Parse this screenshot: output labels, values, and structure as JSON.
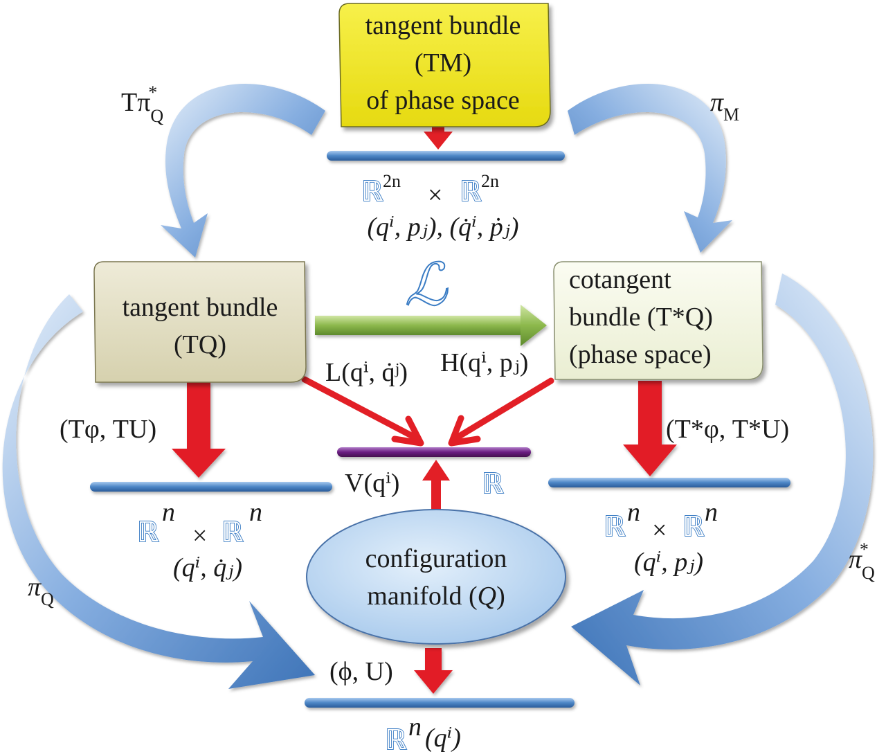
{
  "boxes": {
    "tm": {
      "line1": "tangent bundle",
      "line2": "(TM)",
      "line3": "of phase space"
    },
    "tq": {
      "line1": "tangent bundle",
      "line2": "(TQ)"
    },
    "tstarq": {
      "line1": "cotangent",
      "line2": "bundle (T*Q)",
      "line3": "(phase space)"
    },
    "q": {
      "line1": "configuration",
      "line2": "manifold (",
      "line2_var": "Q",
      "line2_end": ")"
    }
  },
  "maps": {
    "t_pi_q_star": {
      "base": "Tπ",
      "sub": "Q",
      "sup": "*"
    },
    "pi_m": {
      "base": "π",
      "sub": "M"
    },
    "pi_q": {
      "base": "π",
      "sub": "Q"
    },
    "pi_q_star": {
      "base": "π",
      "sub": "Q",
      "sup": "*"
    },
    "legendre": "ℒ",
    "t_phi_tu": "(Tφ, TU)",
    "tstar_phi": "(T*φ, T*U)",
    "phi_u": "(ϕ, U)"
  },
  "spaces": {
    "r2n": {
      "bb": "ℝ",
      "sup": "2n",
      "times": "×",
      "coords": "(qⁱ, pⱼ), (q̇ⁱ, ṗⱼ)"
    },
    "rn_tq": {
      "bb": "ℝ",
      "sup": "n",
      "times": "×",
      "coords": "(qⁱ, q̇ⱼ)"
    },
    "rn_tstar": {
      "bb": "ℝ",
      "sup": "n",
      "times": "×",
      "coords": "(qⁱ, pⱼ)"
    },
    "rn_q": {
      "bb": "ℝ",
      "sup": "n",
      "coords": "(qⁱ)"
    },
    "r": {
      "bb": "ℝ"
    }
  },
  "functions": {
    "lagrangian": "L(qⁱ, q̇ʲ)",
    "hamiltonian": "H(qⁱ, pⱼ)",
    "potential": "V(qⁱ)"
  },
  "colors": {
    "tm_fill": "#f2ea20",
    "tq_fill": "#e4e0c4",
    "tstarq_fill": "#f4f6e6",
    "q_fill": "#c4dcf2",
    "blue_arrow": "#4f86c8",
    "red_arrow": "#e21f26",
    "green_arrow": "#8cb84c",
    "bar_blue": "#4d86c6",
    "bar_purple": "#6b1e82"
  }
}
